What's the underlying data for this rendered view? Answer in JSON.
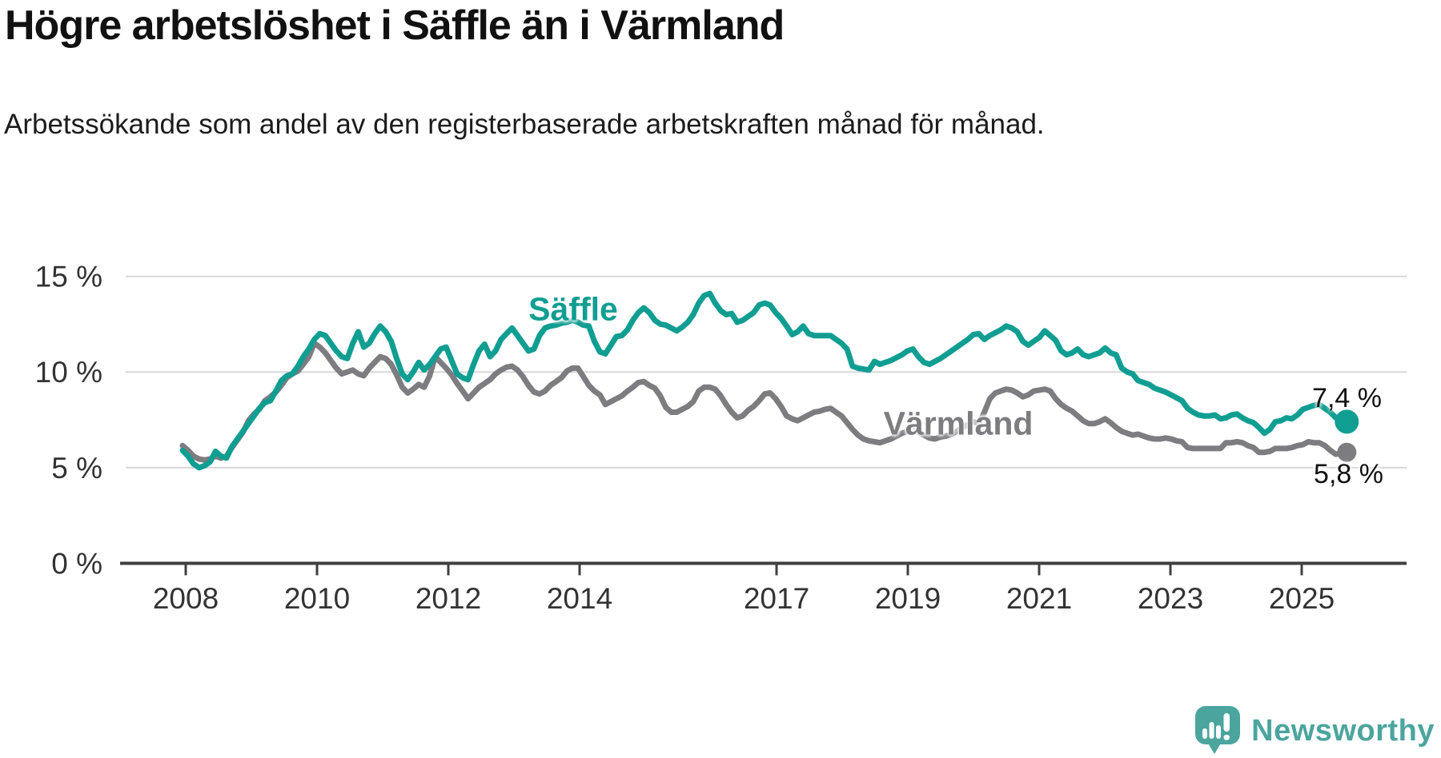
{
  "chart_data": {
    "type": "line",
    "title": "Högre arbetslöshet i Säffle än i Värmland",
    "subtitle": "Arbetssökande som andel av den registerbaserade arbetskraften månad för månad.",
    "unit": "%",
    "grid": "horizontal",
    "legend_position": "inline-labels",
    "x_range": {
      "start_year": 2008,
      "start_month": 1,
      "end_year": 2025,
      "end_month": 9
    },
    "x_tick_years": [
      2008,
      2010,
      2012,
      2014,
      2017,
      2019,
      2021,
      2023,
      2025
    ],
    "y_ticks": [
      0,
      5,
      10,
      15
    ],
    "y_tick_labels": [
      "0 %",
      "5 %",
      "10 %",
      "15 %"
    ],
    "ylim": [
      0,
      15.8
    ],
    "series": [
      {
        "name": "Säffle",
        "color": "#119e92",
        "end_label": "7,4 %",
        "end_value": 7.4,
        "values": [
          5.9,
          5.6,
          5.2,
          5.0,
          5.1,
          5.3,
          5.85,
          5.6,
          5.5,
          6.1,
          6.5,
          6.9,
          7.3,
          7.7,
          8.1,
          8.4,
          8.5,
          9.0,
          9.55,
          9.8,
          9.9,
          10.3,
          10.8,
          11.2,
          11.7,
          12.0,
          11.9,
          11.5,
          11.1,
          10.8,
          10.7,
          11.5,
          12.1,
          11.3,
          11.5,
          12.0,
          12.4,
          12.1,
          11.6,
          10.7,
          9.9,
          9.6,
          10.0,
          10.5,
          10.1,
          10.4,
          10.8,
          11.2,
          11.3,
          10.6,
          9.9,
          9.7,
          9.6,
          10.4,
          11.1,
          11.45,
          10.8,
          11.1,
          11.7,
          12.0,
          12.3,
          11.9,
          11.5,
          11.1,
          11.2,
          11.9,
          12.3,
          12.4,
          12.45,
          12.55,
          12.6,
          12.7,
          12.6,
          12.45,
          12.4,
          11.6,
          11.05,
          10.95,
          11.4,
          11.85,
          11.9,
          12.2,
          12.7,
          13.1,
          13.35,
          13.1,
          12.7,
          12.5,
          12.45,
          12.3,
          12.15,
          12.35,
          12.6,
          13.0,
          13.6,
          14.0,
          14.1,
          13.6,
          13.2,
          13.0,
          13.05,
          12.6,
          12.7,
          12.9,
          13.1,
          13.5,
          13.6,
          13.5,
          13.1,
          12.8,
          12.4,
          11.95,
          12.1,
          12.4,
          12.0,
          11.9,
          11.9,
          11.9,
          11.9,
          11.7,
          11.5,
          11.2,
          10.3,
          10.2,
          10.15,
          10.1,
          10.55,
          10.4,
          10.5,
          10.6,
          10.75,
          10.9,
          11.1,
          11.2,
          10.8,
          10.5,
          10.4,
          10.55,
          10.7,
          10.9,
          11.1,
          11.3,
          11.5,
          11.7,
          11.95,
          12.0,
          11.7,
          11.9,
          12.05,
          12.2,
          12.4,
          12.3,
          12.1,
          11.6,
          11.4,
          11.6,
          11.8,
          12.15,
          11.9,
          11.65,
          11.1,
          10.9,
          11.0,
          11.2,
          10.9,
          10.8,
          10.9,
          11.0,
          11.25,
          11.0,
          10.9,
          10.2,
          10.0,
          9.9,
          9.55,
          9.45,
          9.35,
          9.15,
          9.05,
          8.95,
          8.8,
          8.65,
          8.5,
          8.1,
          7.9,
          7.75,
          7.7,
          7.7,
          7.75,
          7.55,
          7.6,
          7.75,
          7.8,
          7.6,
          7.45,
          7.35,
          7.1,
          6.8,
          7.0,
          7.4,
          7.45,
          7.6,
          7.55,
          7.75,
          8.05,
          8.15,
          8.25,
          8.3,
          8.1,
          7.9,
          7.6,
          7.5,
          7.4
        ]
      },
      {
        "name": "Värmland",
        "color": "#7d7d81",
        "end_label": "5,8 %",
        "end_value": 5.8,
        "values": [
          6.15,
          5.9,
          5.6,
          5.45,
          5.4,
          5.45,
          5.6,
          5.5,
          5.6,
          6.05,
          6.45,
          6.85,
          7.45,
          7.8,
          8.05,
          8.5,
          8.7,
          8.95,
          9.3,
          9.7,
          9.9,
          10.05,
          10.4,
          10.8,
          11.5,
          11.3,
          11.0,
          10.6,
          10.2,
          9.9,
          10.0,
          10.1,
          9.9,
          9.8,
          10.2,
          10.5,
          10.8,
          10.7,
          10.4,
          9.85,
          9.2,
          8.9,
          9.1,
          9.35,
          9.2,
          9.8,
          10.8,
          10.5,
          10.2,
          9.85,
          9.4,
          9.0,
          8.6,
          8.9,
          9.2,
          9.4,
          9.6,
          9.9,
          10.1,
          10.25,
          10.3,
          10.1,
          9.75,
          9.3,
          8.95,
          8.85,
          9.0,
          9.3,
          9.5,
          9.7,
          10.05,
          10.2,
          10.2,
          9.75,
          9.3,
          9.0,
          8.8,
          8.3,
          8.45,
          8.6,
          8.75,
          9.0,
          9.2,
          9.45,
          9.5,
          9.3,
          9.15,
          8.75,
          8.15,
          7.9,
          7.9,
          8.05,
          8.2,
          8.45,
          9.0,
          9.2,
          9.2,
          9.1,
          8.75,
          8.3,
          7.9,
          7.6,
          7.7,
          8.0,
          8.2,
          8.5,
          8.85,
          8.9,
          8.6,
          8.2,
          7.7,
          7.55,
          7.45,
          7.6,
          7.75,
          7.9,
          7.95,
          8.05,
          8.1,
          7.9,
          7.7,
          7.35,
          7.0,
          6.7,
          6.5,
          6.4,
          6.35,
          6.3,
          6.4,
          6.5,
          6.65,
          6.8,
          6.9,
          7.0,
          6.85,
          6.7,
          6.55,
          6.5,
          6.6,
          6.65,
          6.75,
          6.9,
          7.1,
          7.25,
          7.4,
          7.3,
          7.9,
          8.6,
          8.9,
          9.0,
          9.1,
          9.05,
          8.9,
          8.7,
          8.8,
          9.0,
          9.05,
          9.1,
          9.0,
          8.6,
          8.3,
          8.1,
          7.95,
          7.7,
          7.45,
          7.3,
          7.3,
          7.4,
          7.55,
          7.35,
          7.1,
          6.9,
          6.8,
          6.7,
          6.75,
          6.65,
          6.55,
          6.5,
          6.5,
          6.55,
          6.5,
          6.4,
          6.35,
          6.05,
          6.0,
          6.0,
          6.0,
          6.0,
          6.0,
          6.0,
          6.3,
          6.3,
          6.35,
          6.3,
          6.15,
          6.05,
          5.8,
          5.8,
          5.85,
          6.0,
          6.0,
          6.0,
          6.05,
          6.15,
          6.2,
          6.35,
          6.3,
          6.3,
          6.15,
          5.9,
          5.7,
          5.75,
          5.8
        ]
      }
    ]
  },
  "colors": {
    "axis": "#3f3f3f",
    "grid": "#d8d8d8",
    "tick_text": "#333333",
    "accent_teal": "#119e92",
    "series_gray": "#7d7d81",
    "logo_teal": "#4ba59e"
  },
  "footer": {
    "brand": "Newsworthy"
  }
}
